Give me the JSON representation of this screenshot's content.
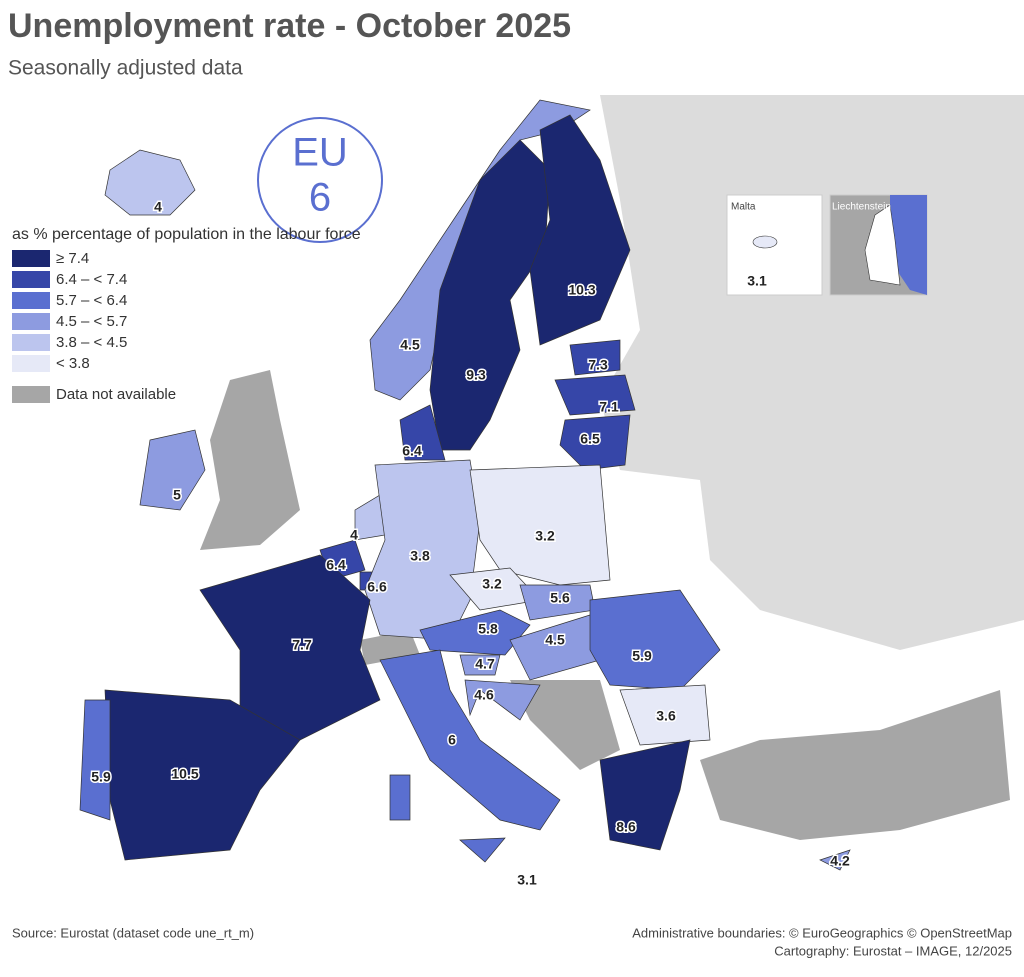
{
  "title": "Unemployment rate - October 2025",
  "subtitle": "Seasonally adjusted data",
  "eu_badge": {
    "label": "EU",
    "value": 6
  },
  "legend": {
    "title": "as % percentage of population in the labour force",
    "items": [
      {
        "label": "≥ 7.4",
        "color": "#1b2770"
      },
      {
        "label": "6.4 – < 7.4",
        "color": "#3646a8"
      },
      {
        "label": "5.7 – < 6.4",
        "color": "#5a6fd0"
      },
      {
        "label": "4.5 – < 5.7",
        "color": "#8d9be0"
      },
      {
        "label": "3.8 – < 4.5",
        "color": "#bcc5ee"
      },
      {
        "label": "< 3.8",
        "color": "#e6e9f7"
      }
    ],
    "not_available": {
      "label": "Data not available",
      "color": "#a6a6a6"
    }
  },
  "insets": [
    "Malta",
    "Liechtenstein"
  ],
  "values": [
    4,
    4.5,
    9.3,
    10.3,
    7.3,
    7.1,
    6.5,
    6.4,
    5,
    4,
    6.4,
    6.6,
    3.8,
    3.2,
    3.2,
    5.6,
    5.8,
    4.5,
    4.7,
    4.6,
    5.9,
    3.6,
    7.7,
    10.5,
    5.9,
    6,
    8.6,
    3.1,
    4.2,
    3.1
  ],
  "source": "Source: Eurostat (dataset code une_rt_m)",
  "credits": [
    "Administrative boundaries: © EuroGeographics © OpenStreetMap",
    "Cartography: Eurostat – IMAGE, 12/2025"
  ]
}
